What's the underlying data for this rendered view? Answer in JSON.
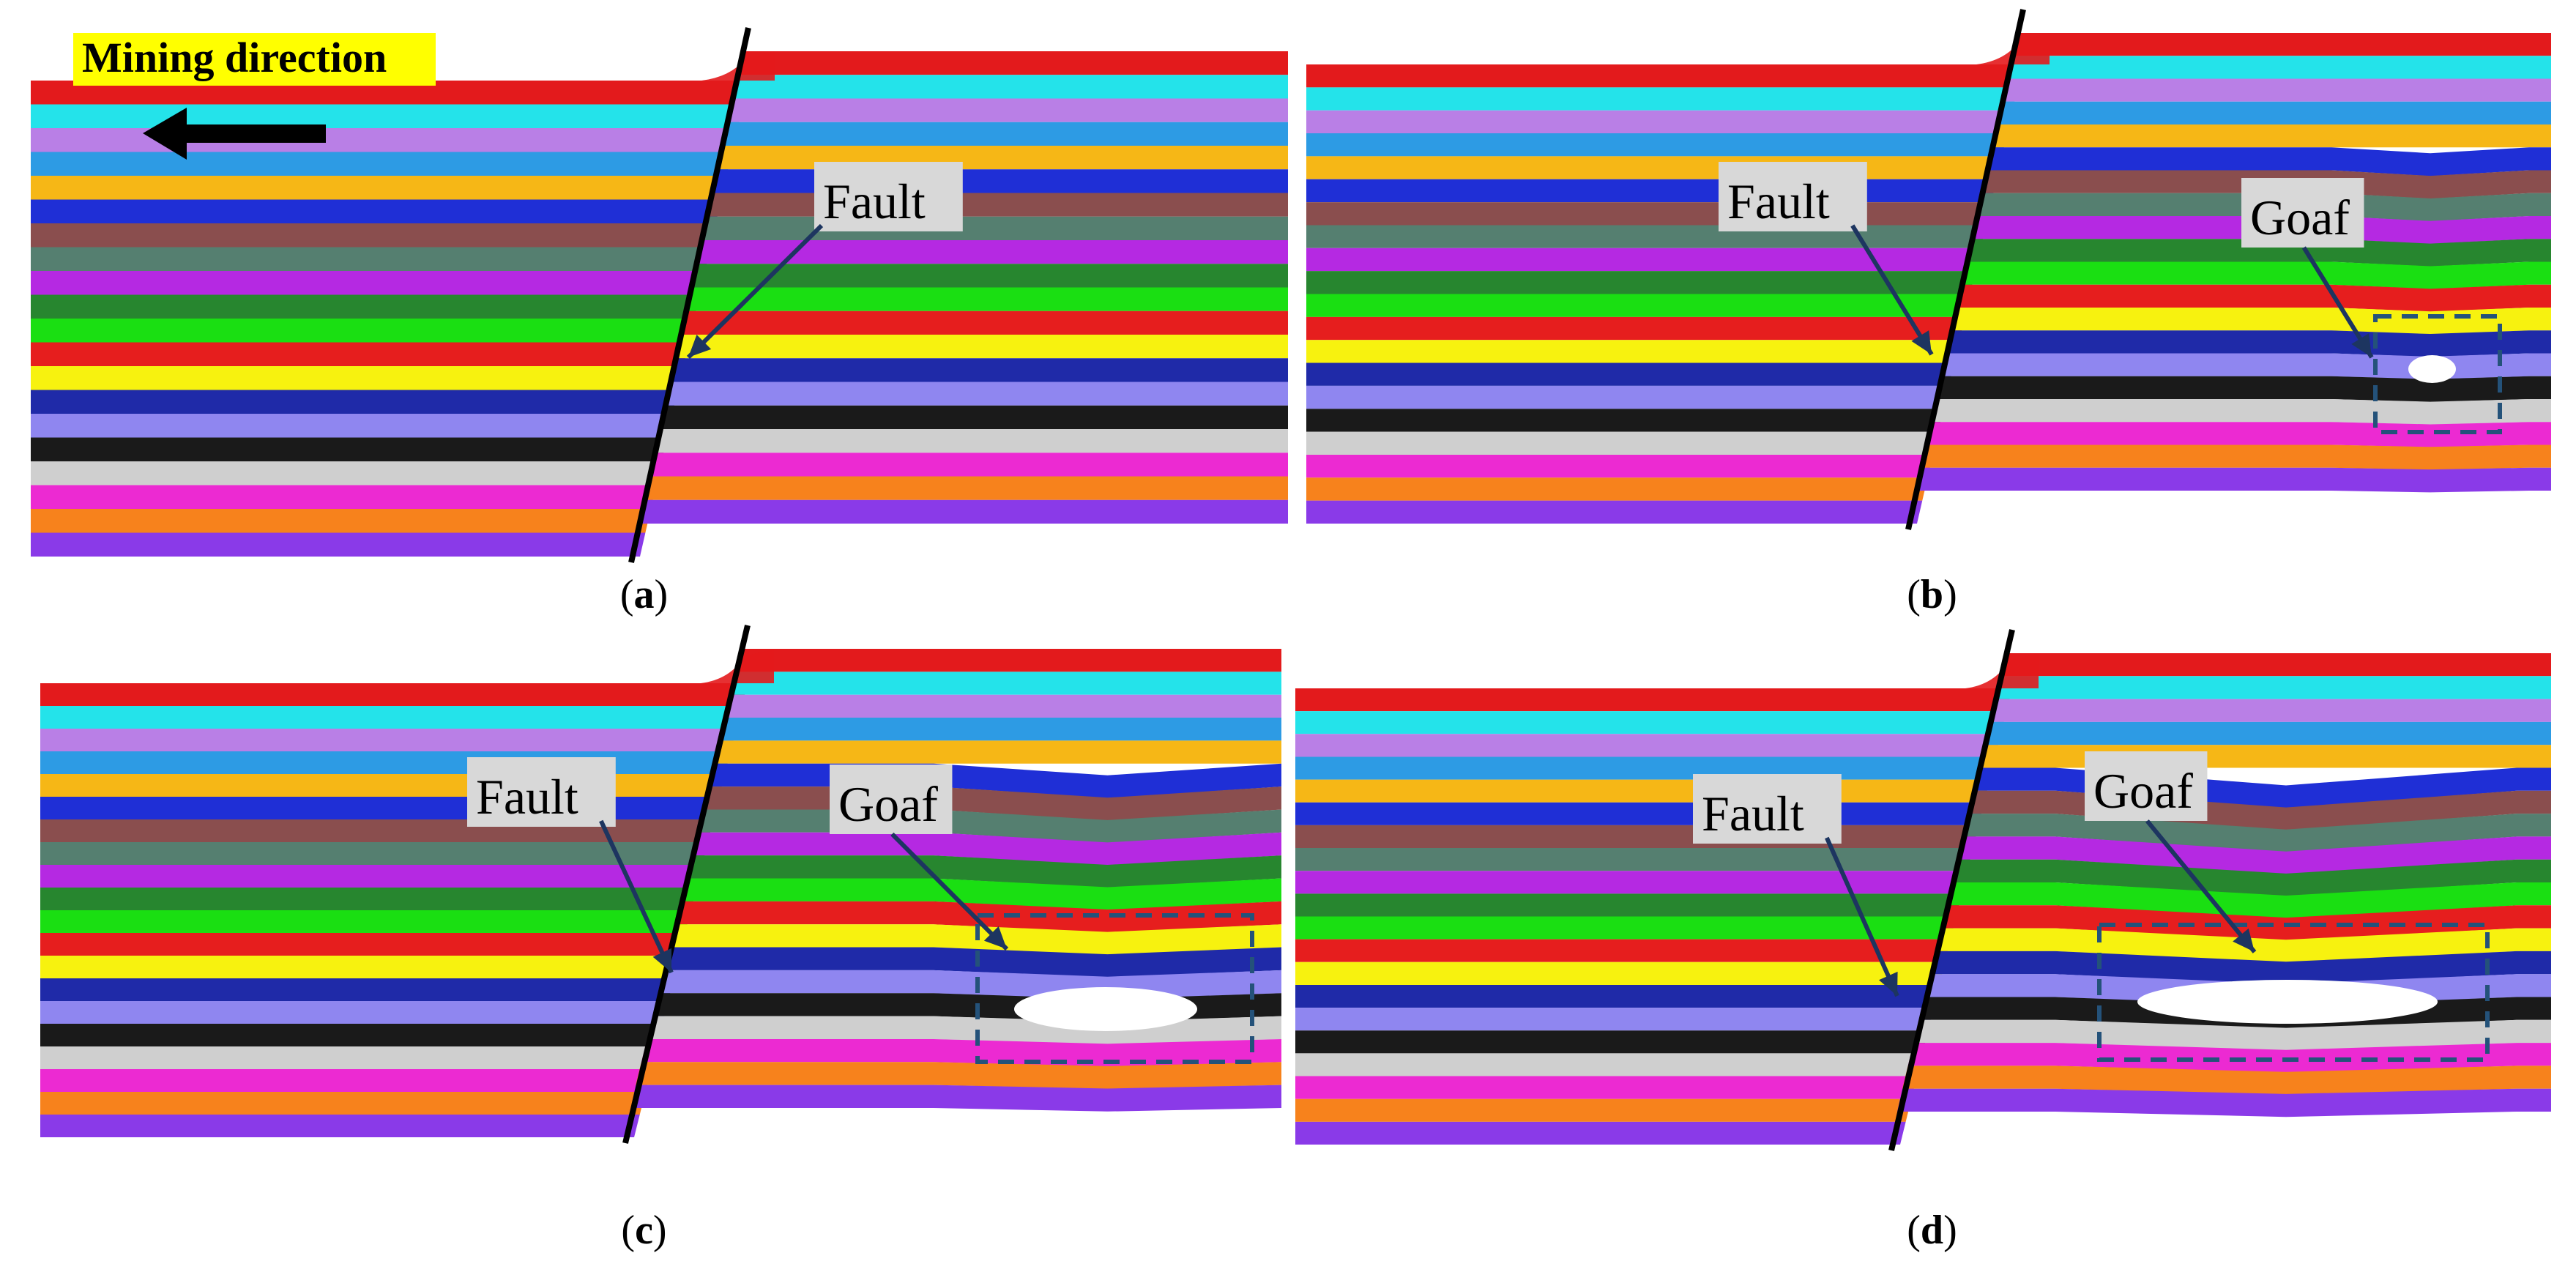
{
  "figure": {
    "mining_direction": "Mining direction",
    "panels": [
      {
        "id": "a",
        "caption": "a",
        "labels": {
          "fault": "Fault",
          "goaf": ""
        },
        "goaf_extent": 0
      },
      {
        "id": "b",
        "caption": "b",
        "labels": {
          "fault": "Fault",
          "goaf": "Goaf"
        },
        "goaf_extent": 1
      },
      {
        "id": "c",
        "caption": "c",
        "labels": {
          "fault": "Fault",
          "goaf": "Goaf"
        },
        "goaf_extent": 2
      },
      {
        "id": "d",
        "caption": "d",
        "labels": {
          "fault": "Fault",
          "goaf": "Goaf"
        },
        "goaf_extent": 3
      }
    ],
    "strata_colors": [
      "#e31a1c",
      "#24e3ea",
      "#b97fe6",
      "#2d9be4",
      "#f6b716",
      "#1f2fd6",
      "#8a4e4e",
      "#557f70",
      "#b529e2",
      "#27862f",
      "#1adf12",
      "#e61e1e",
      "#f7f20f",
      "#1f2aa8",
      "#8f86f0",
      "#1a1a1a",
      "#cfcfcf",
      "#ec2ad2",
      "#f7821c",
      "#8a3ae8"
    ],
    "colors": {
      "fault_line": "#000000",
      "annotation_arrow": "#1d3560",
      "goaf_box": "#24527a",
      "label_box": "#d8d8d8",
      "highlight": "#ffff00"
    }
  }
}
